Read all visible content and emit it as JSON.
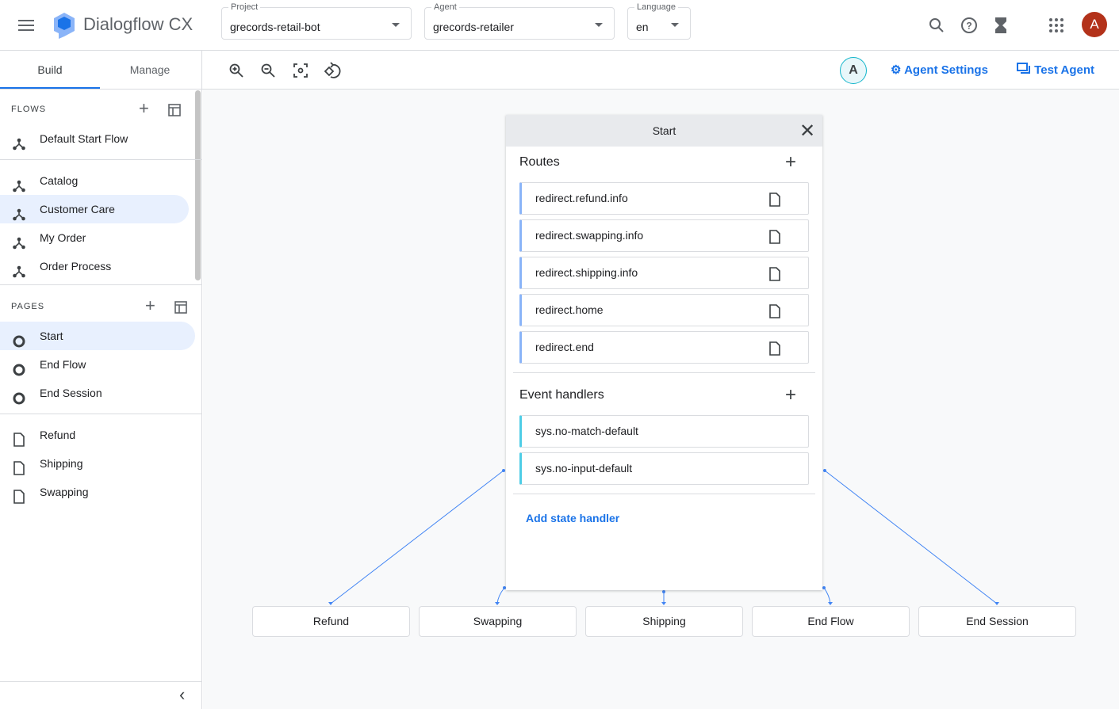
{
  "header": {
    "app_name": "Dialogflow CX",
    "project": {
      "label": "Project",
      "value": "grecords-retail-bot"
    },
    "agent": {
      "label": "Agent",
      "value": "grecords-retailer"
    },
    "language": {
      "label": "Language",
      "value": "en"
    },
    "avatar": "A"
  },
  "sidebar": {
    "tabs": [
      "Build",
      "Manage"
    ],
    "flows_label": "FLOWS",
    "flows": [
      "Default Start Flow",
      "Catalog",
      "Customer Care",
      "My Order",
      "Order Process"
    ],
    "pages_label": "PAGES",
    "pages": [
      "Start",
      "End Flow",
      "End Session"
    ],
    "page_items": [
      "Refund",
      "Shipping",
      "Swapping"
    ]
  },
  "toolbar": {
    "agent_avatar": "A",
    "agent_settings": "Agent Settings",
    "test_agent": "Test Agent"
  },
  "panel": {
    "title": "Start",
    "routes_label": "Routes",
    "routes": [
      "redirect.refund.info",
      "redirect.swapping.info",
      "redirect.shipping.info",
      "redirect.home",
      "redirect.end"
    ],
    "events_label": "Event handlers",
    "events": [
      "sys.no-match-default",
      "sys.no-input-default"
    ],
    "add_handler": "Add state handler"
  },
  "nodes": [
    "Refund",
    "Swapping",
    "Shipping",
    "End Flow",
    "End Session"
  ],
  "colors": {
    "accent": "#1a73e8",
    "avatar": "#b3321a",
    "selected": "#e8f0fe"
  }
}
